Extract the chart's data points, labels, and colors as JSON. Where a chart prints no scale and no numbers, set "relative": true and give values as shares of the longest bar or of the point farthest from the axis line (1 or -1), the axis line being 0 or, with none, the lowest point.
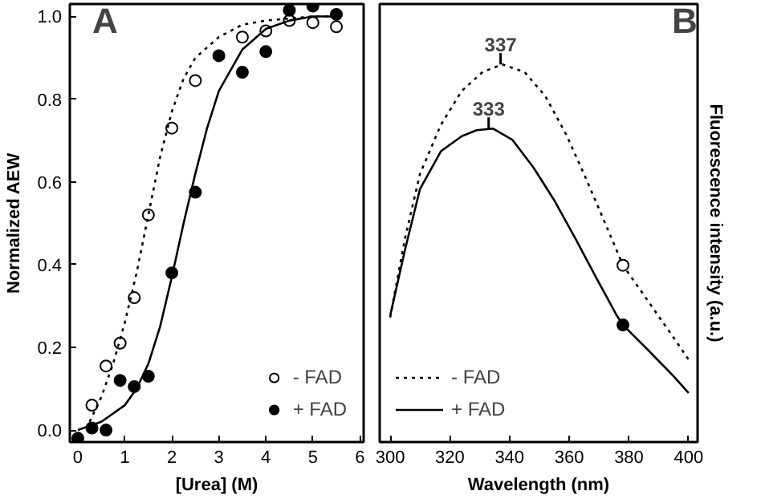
{
  "chart_data": [
    {
      "type": "scatter",
      "ylabel": "Normalized AEW",
      "xlabel": "[Urea] (M)",
      "annotations": [
        "A"
      ],
      "xlim": [
        -0.17,
        6.08
      ],
      "ylim": [
        -0.029,
        1.03
      ],
      "xticks": [
        0,
        1,
        2,
        3,
        4,
        5,
        6
      ],
      "yticks": [
        {
          "value": 0,
          "label": "0.0"
        },
        {
          "value": 0.2,
          "label": "0.2"
        },
        {
          "value": 0.4,
          "label": "0.4"
        },
        {
          "value": 0.6,
          "label": "0.6"
        },
        {
          "value": 0.8,
          "label": "0.8"
        },
        {
          "value": 1,
          "label": "1.0"
        }
      ],
      "legend": "bottom right",
      "grid": false,
      "series": [
        {
          "name": "- FAD",
          "marker": "circle",
          "color": "#ffffff",
          "x": [
            0.3,
            0.6,
            0.9,
            1.2,
            1.5,
            2.0,
            2.5,
            3.5,
            4.0,
            4.5,
            5.0,
            5.5
          ],
          "values": [
            0.06,
            0.155,
            0.21,
            0.32,
            0.52,
            0.73,
            0.845,
            0.95,
            0.965,
            0.99,
            0.985,
            0.975
          ]
        },
        {
          "name": "+ FAD",
          "marker": "circle",
          "color": "#000000",
          "x": [
            0,
            0.3,
            0.6,
            0.9,
            1.2,
            1.5,
            2.0,
            2.5,
            3.0,
            3.5,
            4.0,
            4.5,
            5.0,
            5.5
          ],
          "values": [
            -0.02,
            0.005,
            0.0,
            0.12,
            0.105,
            0.13,
            0.38,
            0.575,
            0.905,
            0.865,
            0.915,
            1.015,
            1.025,
            1.005
          ]
        },
        {
          "type": "line",
          "line_style": "dotted",
          "color": "#000000",
          "x": [
            0.25,
            0.5,
            0.75,
            1.0,
            1.25,
            1.5,
            1.75,
            2.0,
            2.25,
            2.5,
            3.0,
            3.5,
            4.0,
            5.0,
            5.5
          ],
          "values": [
            0.02,
            0.08,
            0.16,
            0.26,
            0.38,
            0.52,
            0.66,
            0.77,
            0.85,
            0.9,
            0.95,
            0.98,
            0.99,
            1.0,
            1.0
          ]
        },
        {
          "type": "line",
          "line_style": "solid",
          "color": "#000000",
          "x": [
            0,
            0.5,
            1.0,
            1.25,
            1.5,
            1.75,
            2.0,
            2.25,
            2.5,
            2.75,
            3.0,
            3.5,
            4.0,
            4.5,
            5.0,
            5.5
          ],
          "values": [
            0.0,
            0.02,
            0.06,
            0.1,
            0.16,
            0.25,
            0.37,
            0.5,
            0.62,
            0.73,
            0.82,
            0.92,
            0.97,
            0.99,
            1.0,
            1.0
          ]
        }
      ]
    },
    {
      "type": "line",
      "relative": true,
      "xlabel": "Wavelength (nm)",
      "y2label": "Fluorescence intensity (a.u.)",
      "annotations": [
        "B",
        {
          "text": "337",
          "x": 337,
          "y": 1.0
        },
        {
          "text": "333",
          "x": 333,
          "y": 0.83
        }
      ],
      "xlim": [
        296.5,
        403
      ],
      "xticks": [
        300,
        320,
        340,
        360,
        380,
        400
      ],
      "legend": "bottom left",
      "grid": false,
      "series": [
        {
          "name": "- FAD",
          "line_style": "dotted",
          "color": "#000000",
          "x": [
            300,
            305,
            310,
            317,
            324,
            331,
            337.6,
            345,
            352,
            359,
            365.5,
            372,
            378,
            386,
            395,
            400
          ],
          "values": [
            0.33,
            0.54,
            0.71,
            0.84,
            0.93,
            0.98,
            1.0,
            0.98,
            0.916,
            0.814,
            0.7,
            0.58,
            0.468,
            0.378,
            0.276,
            0.218
          ]
        },
        {
          "name": "+ FAD",
          "line_style": "solid",
          "color": "#000000",
          "x": [
            300,
            305,
            310,
            317,
            324,
            329,
            334.5,
            341,
            348,
            355,
            362,
            369,
            376,
            378,
            386,
            395,
            400
          ],
          "values": [
            0.334,
            0.51,
            0.67,
            0.77,
            0.81,
            0.826,
            0.83,
            0.8,
            0.727,
            0.64,
            0.54,
            0.436,
            0.334,
            0.31,
            0.247,
            0.174,
            0.13
          ]
        },
        {
          "type": "scatter",
          "marker": "circle",
          "color": "#ffffff",
          "x": [
            378
          ],
          "values": [
            0.468
          ]
        },
        {
          "type": "scatter",
          "marker": "circle",
          "color": "#000000",
          "x": [
            378
          ],
          "values": [
            0.31
          ]
        }
      ]
    }
  ]
}
